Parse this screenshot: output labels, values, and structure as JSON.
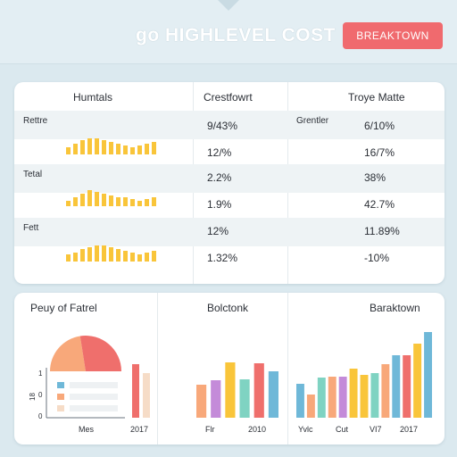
{
  "header": {
    "title": "go HIGHLEVEL COST",
    "breakdown_button": "BREAKTOWN"
  },
  "table": {
    "columns": [
      "Humtals",
      "Crestfowrt",
      "Troye Matte"
    ],
    "sections": [
      {
        "label": "Rettre",
        "side_label": "Grentler",
        "rows": [
          {
            "mid": "9/43%",
            "right": "6/10%"
          },
          {
            "mid": "12/%",
            "right": "16/7%"
          }
        ],
        "sparkline": [
          4,
          6,
          8,
          9,
          9,
          8,
          7,
          6,
          5,
          4,
          5,
          6,
          7,
          8
        ]
      },
      {
        "label": "Tetal",
        "side_label": "",
        "rows": [
          {
            "mid": "2.2%",
            "right": "38%"
          },
          {
            "mid": "1.9%",
            "right": "42.7%"
          }
        ],
        "sparkline": [
          3,
          5,
          7,
          9,
          8,
          7,
          6,
          5,
          5,
          4,
          3,
          4,
          5,
          6
        ]
      },
      {
        "label": "Fett",
        "side_label": "",
        "rows": [
          {
            "mid": "12%",
            "right": "11.89%"
          },
          {
            "mid": "1.32%",
            "right": "-10%"
          }
        ],
        "sparkline": [
          4,
          5,
          7,
          8,
          9,
          9,
          8,
          7,
          6,
          5,
          4,
          5,
          6,
          7
        ]
      }
    ]
  },
  "panels": {
    "left": {
      "title": "Peuy of Fatrel",
      "y_ticks": [
        "1",
        "0",
        "0"
      ],
      "y_axis_label": "18",
      "x_labels": [
        "Mes",
        "2017"
      ],
      "pie": [
        {
          "value": 55,
          "color": "#ef6f6c"
        },
        {
          "value": 45,
          "color": "#f8a87a"
        }
      ],
      "legend_colors": [
        "#6fb8d8",
        "#f8a87a",
        "#f6dcc7"
      ],
      "bars": [
        {
          "value": 60,
          "color": "#ef6f6c"
        },
        {
          "value": 50,
          "color": "#f6dcc7"
        }
      ]
    },
    "middle": {
      "title": "Bolctonk",
      "x_labels": [
        "Flr",
        "2010"
      ],
      "bars": [
        {
          "value": 37,
          "color": "#f8a87a"
        },
        {
          "value": 42,
          "color": "#c48bd9"
        },
        {
          "value": 62,
          "color": "#f9c53a"
        },
        {
          "value": 43,
          "color": "#7fd3c2"
        },
        {
          "value": 61,
          "color": "#ef6f6c"
        },
        {
          "value": 52,
          "color": "#6fb8d8"
        }
      ]
    },
    "right": {
      "title": "Baraktown",
      "x_labels": [
        "Yvlc",
        "Cut",
        "VI7",
        "2017"
      ],
      "bars": [
        {
          "value": 38,
          "color": "#6fb8d8"
        },
        {
          "value": 26,
          "color": "#f8a87a"
        },
        {
          "value": 45,
          "color": "#7fd3c2"
        },
        {
          "value": 46,
          "color": "#f8a87a"
        },
        {
          "value": 46,
          "color": "#c48bd9"
        },
        {
          "value": 55,
          "color": "#f9c53a"
        },
        {
          "value": 48,
          "color": "#f9c53a"
        },
        {
          "value": 50,
          "color": "#7fd3c2"
        },
        {
          "value": 60,
          "color": "#f8a87a"
        },
        {
          "value": 70,
          "color": "#6fb8d8"
        },
        {
          "value": 70,
          "color": "#ef6f6c"
        },
        {
          "value": 83,
          "color": "#f9c53a"
        },
        {
          "value": 96,
          "color": "#6fb8d8"
        }
      ]
    }
  },
  "colors": {
    "accent": "#f06a6e",
    "spark": "#f9c53a"
  }
}
